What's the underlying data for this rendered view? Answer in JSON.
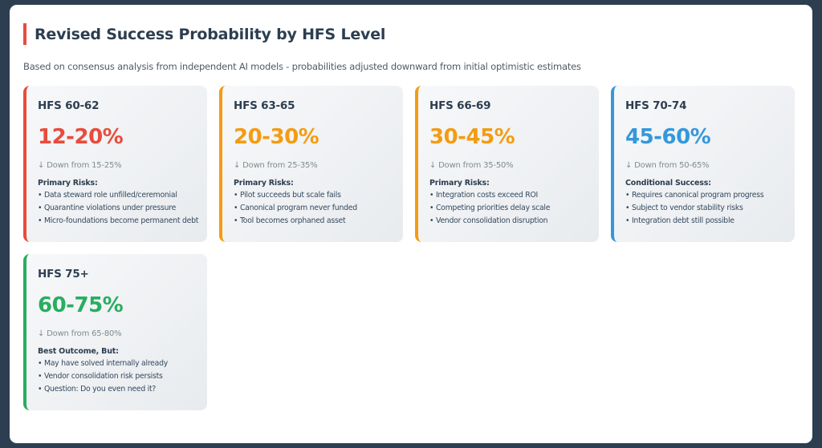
{
  "title": "Revised Success Probability by HFS Level",
  "subtitle": "Based on consensus analysis from independent AI models - probabilities adjusted downward from initial optimistic estimates",
  "cards": [
    {
      "heading": "HFS 60-62",
      "percent": "12-20%",
      "down": "↓ Down from 15-25%",
      "list_title": "Primary Risks:",
      "items": [
        "• Data steward role unfilled/ceremonial",
        "• Quarantine violations under pressure",
        "• Micro-foundations become permanent debt"
      ],
      "color": "#e74c3c"
    },
    {
      "heading": "HFS 63-65",
      "percent": "20-30%",
      "down": "↓ Down from 25-35%",
      "list_title": "Primary Risks:",
      "items": [
        "• Pilot succeeds but scale fails",
        "• Canonical program never funded",
        "• Tool becomes orphaned asset"
      ],
      "color": "#f39c12"
    },
    {
      "heading": "HFS 66-69",
      "percent": "30-45%",
      "down": "↓ Down from 35-50%",
      "list_title": "Primary Risks:",
      "items": [
        "• Integration costs exceed ROI",
        "• Competing priorities delay scale",
        "• Vendor consolidation disruption"
      ],
      "color": "#f39c12"
    },
    {
      "heading": "HFS 70-74",
      "percent": "45-60%",
      "down": "↓ Down from 50-65%",
      "list_title": "Conditional Success:",
      "items": [
        "• Requires canonical program progress",
        "• Subject to vendor stability risks",
        "• Integration debt still possible"
      ],
      "color": "#3498db"
    },
    {
      "heading": "HFS 75+",
      "percent": "60-75%",
      "down": "↓ Down from 65-80%",
      "list_title": "Best Outcome, But:",
      "items": [
        "• May have solved internally already",
        "• Vendor consolidation risk persists",
        "• Question: Do you even need it?"
      ],
      "color": "#27ae60"
    }
  ]
}
